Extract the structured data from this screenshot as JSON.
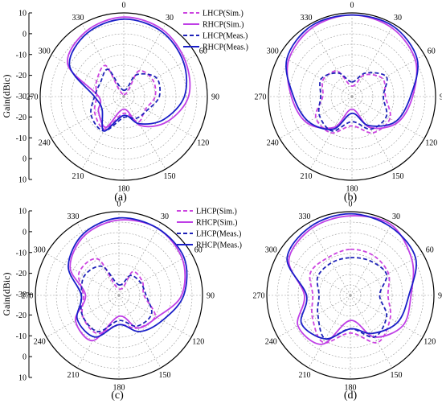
{
  "chart_data": [
    {
      "type": "line",
      "subtype": "polar",
      "panel_label": "(a)",
      "ylabel": "Gain(dBic)",
      "r_ticks": [
        "10",
        "0",
        "-10",
        "-20",
        "-30",
        "-20",
        "-10",
        "0",
        "10"
      ],
      "rlim": [
        -30,
        10
      ],
      "angle_ticks": [
        "0",
        "30",
        "60",
        "90",
        "120",
        "150",
        "180",
        "210",
        "240",
        "270",
        "300",
        "330"
      ],
      "grid": true,
      "legend": {
        "placement": "top-right",
        "entries": [
          "LHCP(Sim.)",
          "RHCP(Sim.)",
          "LHCP(Meas.)",
          "RHCP(Meas.)"
        ]
      },
      "theta": [
        0,
        30,
        60,
        90,
        120,
        150,
        180,
        210,
        240,
        270,
        300,
        330,
        360
      ],
      "series": [
        {
          "name": "LHCP(Sim.)",
          "values": [
            -29,
            -16,
            -14,
            -15,
            -18,
            -16,
            -22,
            -12,
            -14,
            -17,
            -15,
            -13,
            -29
          ]
        },
        {
          "name": "RHCP(Sim.)",
          "values": [
            8,
            7,
            4,
            1,
            -6,
            -14,
            -24,
            -13,
            -16,
            -18,
            1,
            6,
            8
          ]
        },
        {
          "name": "LHCP(Meas.)",
          "values": [
            -27,
            -18,
            -12,
            -13,
            -17,
            -18,
            -20,
            -11,
            -12,
            -16,
            -17,
            -15,
            -27
          ]
        },
        {
          "name": "RHCP(Meas.)",
          "values": [
            7,
            6,
            3,
            -1,
            -8,
            -15,
            -21,
            -11,
            -18,
            -16,
            0,
            5,
            7
          ]
        }
      ]
    },
    {
      "type": "line",
      "subtype": "polar",
      "panel_label": "(b)",
      "rlim": [
        -30,
        10
      ],
      "angle_ticks": [
        "0",
        "30",
        "60",
        "90",
        "120",
        "150",
        "180",
        "210",
        "240",
        "270",
        "300",
        "330"
      ],
      "grid": true,
      "theta": [
        0,
        30,
        60,
        90,
        120,
        150,
        180,
        210,
        240,
        270,
        300,
        330,
        360
      ],
      "series": [
        {
          "name": "LHCP(Sim.)",
          "values": [
            -25,
            -18,
            -13,
            -14,
            -9,
            -10,
            -16,
            -10,
            -10,
            -16,
            -14,
            -16,
            -25
          ]
        },
        {
          "name": "RHCP(Sim.)",
          "values": [
            9,
            8,
            5,
            -1,
            -5,
            -13,
            -24,
            -13,
            -5,
            -1,
            5,
            8,
            9
          ]
        },
        {
          "name": "LHCP(Meas.)",
          "values": [
            -23,
            -17,
            -11,
            -15,
            -11,
            -12,
            -18,
            -11,
            -12,
            -15,
            -13,
            -17,
            -23
          ]
        },
        {
          "name": "RHCP(Meas.)",
          "values": [
            9,
            9,
            6,
            -2,
            -6,
            -14,
            -22,
            -12,
            -6,
            -2,
            6,
            9,
            9
          ]
        }
      ]
    },
    {
      "type": "line",
      "subtype": "polar",
      "panel_label": "(c)",
      "ylabel": "Gain(dBic)",
      "r_ticks": [
        "10",
        "0",
        "-10",
        "-20",
        "-30",
        "-20",
        "-10",
        "0",
        "10"
      ],
      "rlim": [
        -30,
        10
      ],
      "angle_ticks": [
        "0",
        "30",
        "60",
        "90",
        "120",
        "150",
        "180",
        "210",
        "240",
        "270",
        "300",
        "330"
      ],
      "grid": true,
      "legend": {
        "placement": "top-right",
        "entries": [
          "LHCP(Sim.)",
          "RHCP(Sim.)",
          "LHCP(Meas.)",
          "RHCP(Meas.)"
        ]
      },
      "theta": [
        0,
        30,
        60,
        90,
        120,
        150,
        180,
        210,
        240,
        270,
        300,
        330,
        360
      ],
      "series": [
        {
          "name": "LHCP(Sim.)",
          "values": [
            -27,
            -17,
            -17,
            -18,
            -10,
            -12,
            -16,
            -9,
            -10,
            -13,
            -8,
            -10,
            -27
          ]
        },
        {
          "name": "RHCP(Sim.)",
          "values": [
            6,
            7,
            5,
            0,
            -9,
            -12,
            -20,
            -5,
            -6,
            -14,
            -3,
            3,
            6
          ]
        },
        {
          "name": "LHCP(Meas.)",
          "values": [
            -25,
            -19,
            -18,
            -17,
            -12,
            -13,
            -18,
            -10,
            -10,
            -12,
            -11,
            -14,
            -25
          ]
        },
        {
          "name": "RHCP(Meas.)",
          "values": [
            7,
            7,
            6,
            1,
            -6,
            -10,
            -16,
            -7,
            -7,
            -12,
            -2,
            4,
            7
          ]
        }
      ]
    },
    {
      "type": "line",
      "subtype": "polar",
      "panel_label": "(d)",
      "rlim": [
        -30,
        10
      ],
      "angle_ticks": [
        "0",
        "30",
        "60",
        "90",
        "120",
        "150",
        "180",
        "210",
        "240",
        "270",
        "300",
        "330"
      ],
      "grid": true,
      "theta": [
        0,
        30,
        60,
        90,
        120,
        150,
        180,
        210,
        240,
        270,
        300,
        330,
        360
      ],
      "series": [
        {
          "name": "LHCP(Sim.)",
          "values": [
            -8,
            -8,
            -9,
            -12,
            -8,
            -4,
            -12,
            -4,
            -9,
            -12,
            -8,
            -9,
            -8
          ]
        },
        {
          "name": "RHCP(Sim.)",
          "values": [
            8,
            9,
            4,
            -1,
            -1,
            -7,
            -18,
            -3,
            -1,
            -8,
            4,
            7,
            8
          ]
        },
        {
          "name": "LHCP(Meas.)",
          "values": [
            -12,
            -11,
            -10,
            -16,
            -10,
            -7,
            -14,
            -6,
            -12,
            -15,
            -12,
            -12,
            -12
          ]
        },
        {
          "name": "RHCP(Meas.)",
          "values": [
            9,
            8,
            6,
            -2,
            -4,
            -9,
            -14,
            -6,
            -3,
            -9,
            5,
            8,
            9
          ]
        }
      ]
    }
  ],
  "series_colors": {
    "LHCP(Sim.)": "#cc44e0",
    "RHCP(Sim.)": "#bf3fe6",
    "LHCP(Meas.)": "#1e22b8",
    "RHCP(Meas.)": "#1a1fc8"
  }
}
